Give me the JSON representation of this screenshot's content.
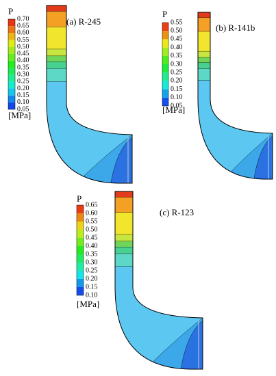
{
  "panels": [
    {
      "label": "(a) R-245",
      "symbol": "P",
      "unit": "[MPa]",
      "ticks": [
        "0.70",
        "0.65",
        "0.60",
        "0.55",
        "0.50",
        "0.45",
        "0.40",
        "0.35",
        "0.30",
        "0.25",
        "0.20",
        "0.15",
        "0.10",
        "0.05"
      ]
    },
    {
      "label": "(b) R-141b",
      "symbol": "P",
      "unit": "[MPa]",
      "ticks": [
        "0.55",
        "0.50",
        "0.45",
        "0.40",
        "0.35",
        "0.30",
        "0.25",
        "0.20",
        "0.15",
        "0.10",
        "0.05"
      ]
    },
    {
      "label": "(c) R-123",
      "symbol": "P",
      "unit": "[MPa]",
      "ticks": [
        "0.65",
        "0.60",
        "0.55",
        "0.50",
        "0.45",
        "0.40",
        "0.35",
        "0.30",
        "0.25",
        "0.20",
        "0.15",
        "0.10"
      ]
    }
  ]
}
